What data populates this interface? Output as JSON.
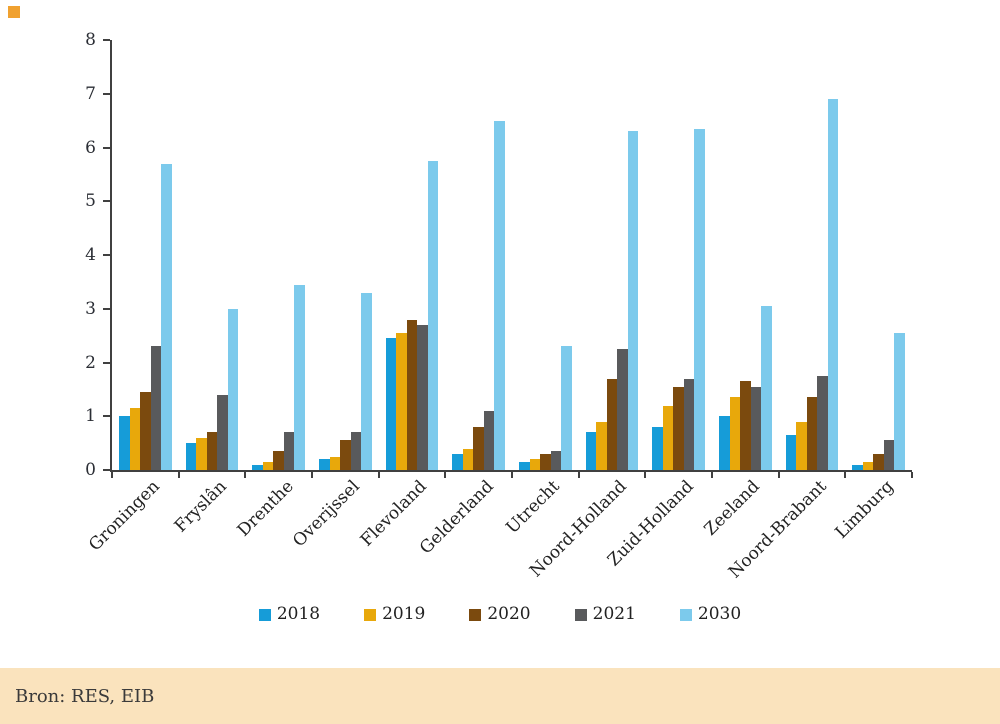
{
  "figure": {
    "marker_color": "#F0A130",
    "background": "#ffffff",
    "axis_color": "#404040"
  },
  "chart_data": {
    "type": "bar",
    "title": "",
    "xlabel": "",
    "ylabel": "",
    "ylim": [
      0,
      8
    ],
    "ytick_interval": 1,
    "grid": false,
    "legend_position": "bottom",
    "categories": [
      "Groningen",
      "Fryslân",
      "Drenthe",
      "Overijssel",
      "Flevoland",
      "Gelderland",
      "Utrecht",
      "Noord-Holland",
      "Zuid-Holland",
      "Zeeland",
      "Noord-Brabant",
      "Limburg"
    ],
    "series": [
      {
        "name": "2018",
        "color": "#169CD8",
        "values": [
          1.0,
          0.5,
          0.1,
          0.2,
          2.45,
          0.3,
          0.15,
          0.7,
          0.8,
          1.0,
          0.65,
          0.1
        ]
      },
      {
        "name": "2019",
        "color": "#E8A80B",
        "values": [
          1.15,
          0.6,
          0.15,
          0.25,
          2.55,
          0.4,
          0.2,
          0.9,
          1.2,
          1.35,
          0.9,
          0.15
        ]
      },
      {
        "name": "2020",
        "color": "#7B4A0E",
        "values": [
          1.45,
          0.7,
          0.35,
          0.55,
          2.8,
          0.8,
          0.3,
          1.7,
          1.55,
          1.65,
          1.35,
          0.3
        ]
      },
      {
        "name": "2021",
        "color": "#595A5C",
        "values": [
          2.3,
          1.4,
          0.7,
          0.7,
          2.7,
          1.1,
          0.35,
          2.25,
          1.7,
          1.55,
          1.75,
          0.55
        ]
      },
      {
        "name": "2030",
        "color": "#7CCAEC",
        "values": [
          5.7,
          3.0,
          3.45,
          3.3,
          5.75,
          6.5,
          2.3,
          6.3,
          6.35,
          3.05,
          6.9,
          2.55
        ]
      }
    ]
  },
  "footer": {
    "source_label": "Bron: RES, EIB",
    "background": "#FAE3BD"
  }
}
